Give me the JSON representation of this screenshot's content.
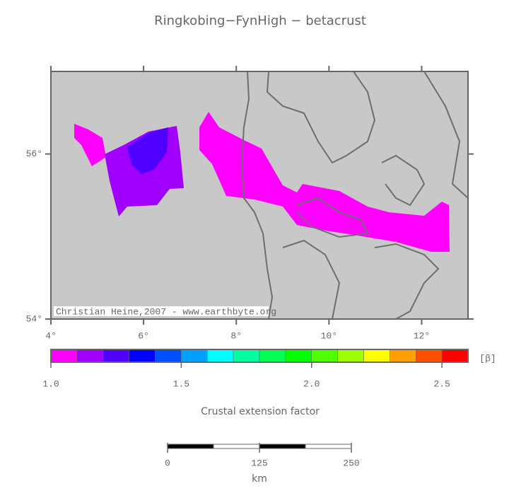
{
  "title": "Ringkobing−FynHigh − betacrust",
  "map": {
    "xlim": [
      4,
      13
    ],
    "ylim": [
      54,
      57
    ],
    "xticks": [
      {
        "value": 4,
        "label": "4°"
      },
      {
        "value": 6,
        "label": "6°"
      },
      {
        "value": 8,
        "label": "8°"
      },
      {
        "value": 10,
        "label": "10°"
      },
      {
        "value": 12,
        "label": "12°"
      }
    ],
    "yticks": [
      {
        "value": 54,
        "label": "54°"
      },
      {
        "value": 56,
        "label": "56°"
      }
    ],
    "credit": "Christian Heine,2007 - www.earthbyte.org"
  },
  "colorbar": {
    "lim": [
      1.0,
      2.6
    ],
    "unit": "[β]",
    "label": "Crustal extension factor",
    "colors": [
      "#ff00ff",
      "#a000ff",
      "#5000ff",
      "#0000ff",
      "#0050ff",
      "#00a0ff",
      "#00ffff",
      "#00ffa0",
      "#00ff50",
      "#00ff00",
      "#50ff00",
      "#a0ff00",
      "#ffff00",
      "#ffa000",
      "#ff5000",
      "#ff0000"
    ],
    "ticks": [
      {
        "value": 1.0,
        "label": "1.0"
      },
      1.5,
      {
        "value": 2.0,
        "label": "2.0"
      },
      2.5
    ]
  },
  "scalebar": {
    "lim": [
      0,
      250
    ],
    "ticks": [
      0,
      125,
      250
    ],
    "unit": "km"
  }
}
